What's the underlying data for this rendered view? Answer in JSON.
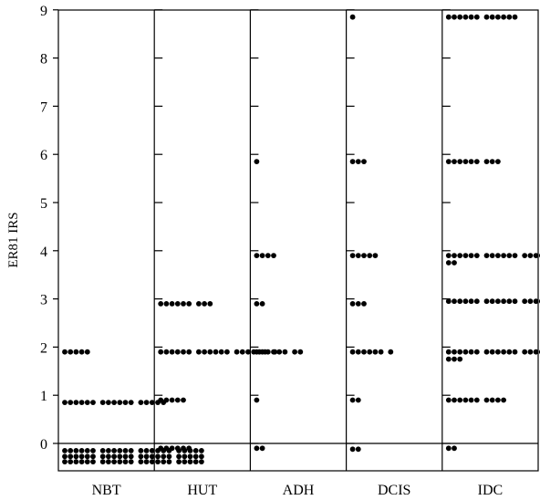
{
  "chart_data": {
    "type": "scatter",
    "ylabel": "ER81 IRS",
    "yticks": [
      0,
      1,
      2,
      3,
      4,
      5,
      6,
      7,
      8,
      9
    ],
    "ylim": [
      -0.5,
      9
    ],
    "zero_line": true,
    "grid": false,
    "categories": [
      "NBT",
      "HUT",
      "ADH",
      "DCIS",
      "IDC"
    ],
    "series": [
      {
        "category": "NBT",
        "points": [
          {
            "y": 1.9,
            "n": 5
          },
          {
            "y": 0.85,
            "n": 17
          },
          {
            "y": -0.15,
            "n": 23
          },
          {
            "y": -0.27,
            "n": 23
          },
          {
            "y": -0.38,
            "n": 23
          }
        ]
      },
      {
        "category": "HUT",
        "points": [
          {
            "y": 2.9,
            "n": 9
          },
          {
            "y": 1.9,
            "n": 19
          },
          {
            "y": 0.9,
            "n": 5
          },
          {
            "y": -0.1,
            "n": 6
          }
        ]
      },
      {
        "category": "ADH",
        "points": [
          {
            "y": 5.85,
            "n": 1
          },
          {
            "y": 3.9,
            "n": 4
          },
          {
            "y": 2.9,
            "n": 2
          },
          {
            "y": 1.9,
            "n": 8
          },
          {
            "y": 0.9,
            "n": 1
          },
          {
            "y": -0.1,
            "n": 2
          }
        ]
      },
      {
        "category": "DCIS",
        "points": [
          {
            "y": 8.85,
            "n": 1
          },
          {
            "y": 5.85,
            "n": 3
          },
          {
            "y": 3.9,
            "n": 5
          },
          {
            "y": 2.9,
            "n": 3
          },
          {
            "y": 1.9,
            "n": 7
          },
          {
            "y": 0.9,
            "n": 2
          },
          {
            "y": -0.12,
            "n": 2
          }
        ]
      },
      {
        "category": "IDC",
        "points": [
          {
            "y": 8.85,
            "n": 12
          },
          {
            "y": 5.85,
            "n": 9
          },
          {
            "y": 3.9,
            "n": 19
          },
          {
            "y": 3.75,
            "n": 2
          },
          {
            "y": 2.95,
            "n": 19
          },
          {
            "y": 1.9,
            "n": 19
          },
          {
            "y": 1.75,
            "n": 3
          },
          {
            "y": 0.9,
            "n": 10
          },
          {
            "y": -0.1,
            "n": 2
          }
        ]
      }
    ]
  }
}
